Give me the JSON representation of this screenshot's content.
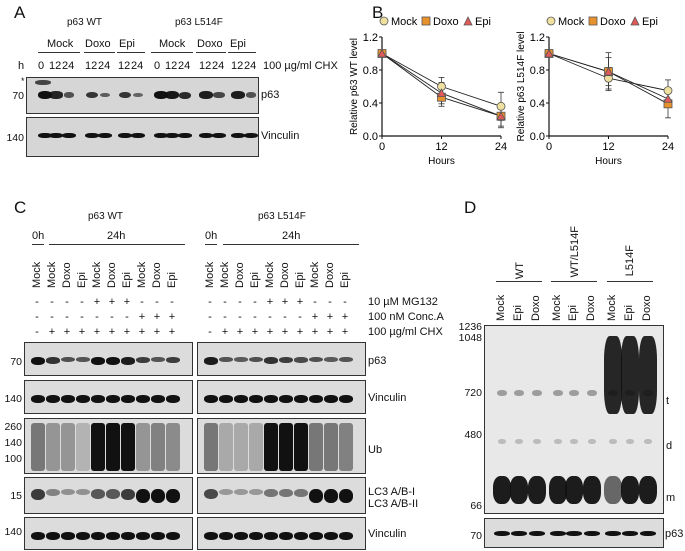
{
  "panels": {
    "A": {
      "letter": "A",
      "groups": [
        "p63 WT",
        "p63 L514F"
      ],
      "treatments": [
        "Mock",
        "Doxo",
        "Epi",
        "Mock",
        "Doxo",
        "Epi"
      ],
      "time_prefix": "h",
      "time_points": [
        "0",
        "12",
        "24",
        "12",
        "24",
        "12",
        "24",
        "0",
        "12",
        "24",
        "12",
        "24",
        "12",
        "24"
      ],
      "condition": "100 µg/ml CHX",
      "asterisk": "*",
      "blots": [
        {
          "mw": "70",
          "label": "p63"
        },
        {
          "mw": "140",
          "label": "Vinculin"
        }
      ]
    },
    "B": {
      "letter": "B",
      "legend": [
        "Mock",
        "Doxo",
        "Epi"
      ]
    },
    "C": {
      "letter": "C",
      "groups": [
        "p63 WT",
        "p63 L514F"
      ],
      "timepoints": [
        "0h",
        "24h"
      ],
      "lanes": [
        "Mock",
        "Mock",
        "Doxo",
        "Epi",
        "Mock",
        "Doxo",
        "Epi",
        "Mock",
        "Doxo",
        "Epi"
      ],
      "mg132": [
        "-",
        "-",
        "-",
        "-",
        "+",
        "+",
        "+",
        "-",
        "-",
        "-"
      ],
      "conca": [
        "-",
        "-",
        "-",
        "-",
        "-",
        "-",
        "-",
        "+",
        "+",
        "+"
      ],
      "chx": [
        "-",
        "+",
        "+",
        "+",
        "+",
        "+",
        "+",
        "+",
        "+",
        "+"
      ],
      "conditions": [
        "10 µM MG132",
        "100 nM Conc.A",
        "100 µg/ml CHX"
      ],
      "blots": [
        {
          "mw": [
            "70"
          ],
          "labels": [
            "p63"
          ]
        },
        {
          "mw": [
            "140"
          ],
          "labels": [
            "Vinculin"
          ]
        },
        {
          "mw": [
            "260",
            "140",
            "100"
          ],
          "labels": [
            "Ub"
          ]
        },
        {
          "mw": [
            "15"
          ],
          "labels": [
            "LC3 A/B-I",
            "LC3 A/B-II"
          ]
        },
        {
          "mw": [
            "140"
          ],
          "labels": [
            "Vinculin"
          ]
        }
      ]
    },
    "D": {
      "letter": "D",
      "groups": [
        "WT",
        "WT/L514F",
        "L514F"
      ],
      "lanes": [
        "Mock",
        "Epi",
        "Doxo",
        "Mock",
        "Epi",
        "Doxo",
        "Mock",
        "Epi",
        "Doxo"
      ],
      "mw": [
        "1236",
        "1048",
        "720",
        "480",
        "66"
      ],
      "band_labels": [
        "t",
        "d",
        "m"
      ],
      "bottom_blot": {
        "mw": "70",
        "label": "p63"
      }
    }
  },
  "chart_data": [
    {
      "type": "line",
      "title": "",
      "xlabel": "Hours",
      "ylabel": "Relative p63 WT level",
      "x": [
        0,
        12,
        24
      ],
      "xticks": [
        "0",
        "12",
        "24"
      ],
      "yticks": [
        "0.0",
        "0.4",
        "0.8",
        "1.2"
      ],
      "ylim": [
        0,
        1.2
      ],
      "grid": false,
      "legend_position": "top",
      "series": [
        {
          "name": "Mock",
          "values": [
            1.0,
            0.6,
            0.36
          ],
          "errors": [
            0,
            0.11,
            0.17
          ],
          "marker": "circle",
          "color": "#f0e0a0"
        },
        {
          "name": "Doxo",
          "values": [
            1.0,
            0.47,
            0.24
          ],
          "errors": [
            0,
            0.11,
            0.12
          ],
          "marker": "square",
          "color": "#e8922e"
        },
        {
          "name": "Epi",
          "values": [
            1.0,
            0.52,
            0.24
          ],
          "errors": [
            0,
            0.13,
            0.14
          ],
          "marker": "triangle",
          "color": "#e05a5a"
        }
      ]
    },
    {
      "type": "line",
      "title": "",
      "xlabel": "Hours",
      "ylabel": "Relative p63 L514F level",
      "x": [
        0,
        12,
        24
      ],
      "xticks": [
        "0",
        "12",
        "24"
      ],
      "yticks": [
        "0.0",
        "0.4",
        "0.8",
        "1.2"
      ],
      "ylim": [
        0,
        1.2
      ],
      "grid": false,
      "legend_position": "top",
      "series": [
        {
          "name": "Mock",
          "values": [
            1.0,
            0.7,
            0.55
          ],
          "errors": [
            0,
            0.13,
            0.13
          ],
          "marker": "circle",
          "color": "#f0e0a0"
        },
        {
          "name": "Doxo",
          "values": [
            1.0,
            0.78,
            0.39
          ],
          "errors": [
            0,
            0.17,
            0.17
          ],
          "marker": "square",
          "color": "#e8922e"
        },
        {
          "name": "Epi",
          "values": [
            1.0,
            0.78,
            0.45
          ],
          "errors": [
            0,
            0.23,
            0.1
          ],
          "marker": "triangle",
          "color": "#e05a5a"
        }
      ]
    }
  ]
}
